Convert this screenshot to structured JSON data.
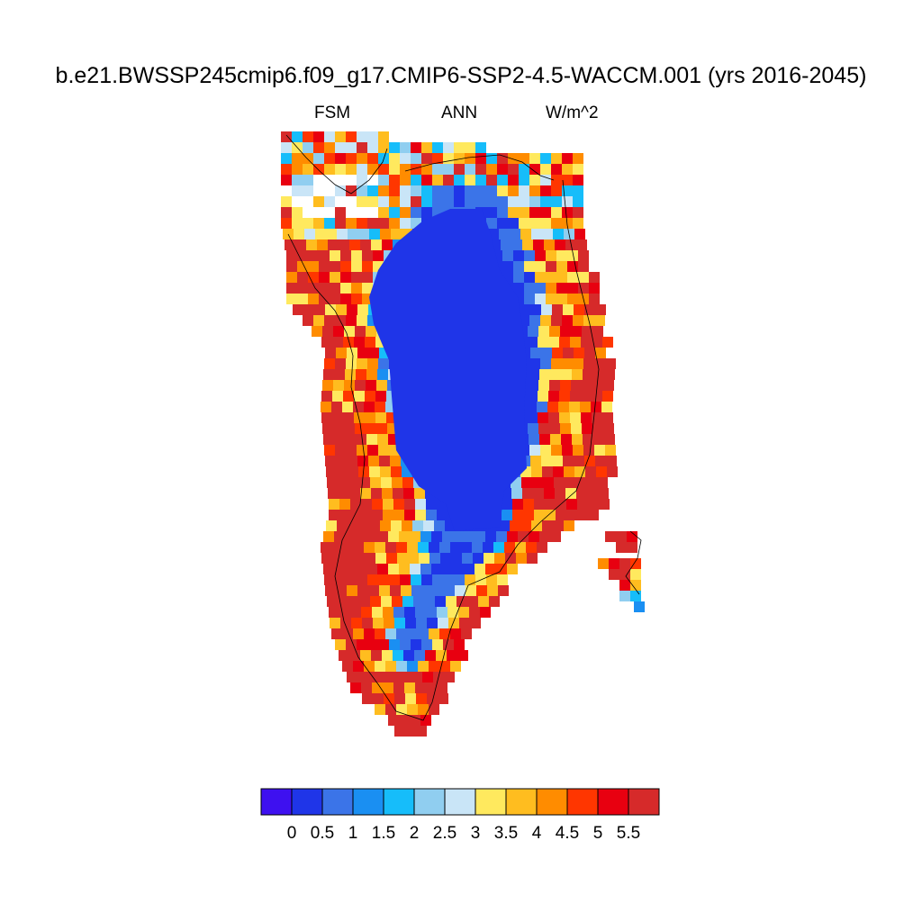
{
  "header": {
    "title": "b.e21.BWSSP245cmip6.f09_g17.CMIP6-SSP2-4.5-WACCM.001 (yrs 2016-2045)",
    "left_label": "FSM",
    "center_label": "ANN",
    "right_label": "W/m^2"
  },
  "colorbar": {
    "colors": [
      "#3e10f0",
      "#1f35e8",
      "#3b74e8",
      "#1a8ff2",
      "#16bdfa",
      "#90cef0",
      "#c9e5f7",
      "#ffe95e",
      "#ffbd1f",
      "#ff8c00",
      "#ff3600",
      "#e80010",
      "#d62a2a"
    ],
    "tick_labels": [
      "0",
      "0.5",
      "1",
      "1.5",
      "2",
      "2.5",
      "3",
      "3.5",
      "4",
      "4.5",
      "5",
      "5.5"
    ]
  },
  "chart_data": {
    "type": "heatmap",
    "title": "b.e21.BWSSP245cmip6.f09_g17.CMIP6-SSP2-4.5-WACCM.001 (yrs 2016-2045)",
    "variable": "FSM",
    "season": "ANN",
    "units": "W/m^2",
    "region": "Greenland",
    "levels": [
      0,
      0.5,
      1,
      1.5,
      2,
      2.5,
      3,
      3.5,
      4,
      4.5,
      5,
      5.5
    ],
    "value_range_description": {
      "interior_ice_sheet": "0.5",
      "coastal_margins": ">5.5"
    }
  }
}
